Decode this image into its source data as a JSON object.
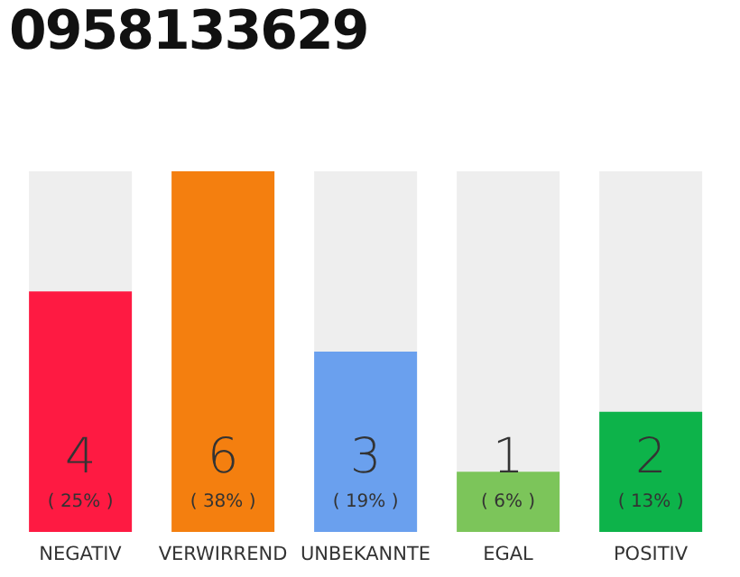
{
  "chart_data": {
    "type": "bar",
    "title": "0958133629",
    "categories": [
      "NEGATIV",
      "VERWIRREND",
      "UNBEKANNTE",
      "EGAL",
      "POSITIV"
    ],
    "values": [
      4,
      6,
      3,
      1,
      2
    ],
    "colors": [
      "#fe1a42",
      "#f47f0f",
      "#6aa0ee",
      "#7cc55a",
      "#0db34a"
    ],
    "data_labels": true,
    "annotations": [
      "( 25% )",
      "( 38% )",
      "( 19% )",
      "( 6% )",
      "( 13% )"
    ],
    "grid": false,
    "legend": false
  }
}
